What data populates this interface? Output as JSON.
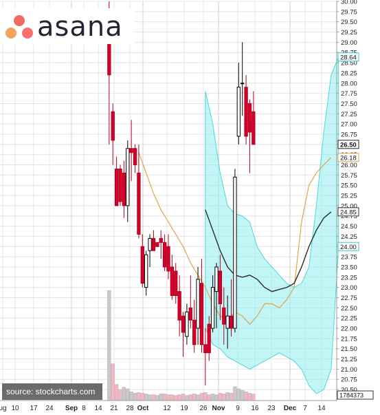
{
  "logo": {
    "text": "asana",
    "colors": [
      "#f06a6a",
      "#f0a35a",
      "#f96e6e"
    ]
  },
  "source": "source: stockcharts.com",
  "colors": {
    "up_body": "#ffffff",
    "down_body": "#d8002b",
    "wick": "#000000",
    "band_fill": "#8fefef",
    "band_edge": "#4fd6d6",
    "sma_short": "#e0a44a",
    "sma_long": "#2b2b2b",
    "volume": "#c9c9c9",
    "grid": "#e4e4e4"
  },
  "chart_data": {
    "type": "candlestick",
    "ylim": [
      20.4,
      30.0
    ],
    "y_ticks": [
      "30.00",
      "29.75",
      "29.50",
      "29.25",
      "29.00",
      "28.75",
      "28.50",
      "28.25",
      "28.00",
      "27.75",
      "27.50",
      "27.25",
      "27.00",
      "26.75",
      "26.50",
      "26.25",
      "26.00",
      "25.75",
      "25.50",
      "25.25",
      "25.00",
      "24.75",
      "24.50",
      "24.25",
      "24.00",
      "23.75",
      "23.50",
      "23.25",
      "23.00",
      "22.75",
      "22.50",
      "22.25",
      "22.00",
      "21.75",
      "21.50",
      "21.25",
      "21.00",
      "20.75",
      "20.50"
    ],
    "x_ticks": [
      "ug",
      "10",
      "17",
      "24",
      "Sep",
      "8",
      "14",
      "21",
      "28",
      "Oct",
      "12",
      "19",
      "26",
      "Nov",
      "9",
      "16",
      "23",
      "Dec",
      "7",
      "14"
    ],
    "bold_x_ticks": [
      "Sep",
      "Oct",
      "Nov",
      "Dec"
    ],
    "price_labels": [
      {
        "text": "28.64",
        "value": 28.64,
        "style": "cyan"
      },
      {
        "text": "26.50",
        "value": 26.5,
        "style": "bold"
      },
      {
        "text": "26.18",
        "value": 26.18,
        "style": "orange"
      },
      {
        "text": "24.85",
        "value": 24.85,
        "style": "plain"
      },
      {
        "text": "24.00",
        "value": 24.0,
        "style": "cyan"
      }
    ],
    "volume_label": "1784373",
    "candles": [
      {
        "day": 29,
        "o": 29.3,
        "h": 30.0,
        "l": 26.5,
        "c": 28.2
      },
      {
        "day": 30,
        "o": 27.3,
        "h": 27.5,
        "l": 26.0,
        "c": 26.6
      },
      {
        "day": 31,
        "o": 25.9,
        "h": 26.2,
        "l": 25.0,
        "c": 25.0
      },
      {
        "day": 32,
        "o": 25.9,
        "h": 26.0,
        "l": 25.0,
        "c": 25.1
      },
      {
        "day": 33,
        "o": 25.8,
        "h": 26.1,
        "l": 24.7,
        "c": 25.0
      },
      {
        "day": 34,
        "o": 25.0,
        "h": 26.6,
        "l": 24.6,
        "c": 26.4
      },
      {
        "day": 35,
        "o": 26.4,
        "h": 27.1,
        "l": 25.6,
        "c": 26.3
      },
      {
        "day": 36,
        "o": 26.4,
        "h": 26.5,
        "l": 25.8,
        "c": 26.0
      },
      {
        "day": 37,
        "o": 25.8,
        "h": 26.5,
        "l": 24.2,
        "c": 24.3
      },
      {
        "day": 38,
        "o": 24.0,
        "h": 24.3,
        "l": 23.0,
        "c": 23.1
      },
      {
        "day": 39,
        "o": 23.0,
        "h": 23.9,
        "l": 22.8,
        "c": 23.8
      },
      {
        "day": 40,
        "o": 23.9,
        "h": 24.3,
        "l": 23.5,
        "c": 24.2
      },
      {
        "day": 41,
        "o": 24.2,
        "h": 24.4,
        "l": 23.9,
        "c": 23.9
      },
      {
        "day": 42,
        "o": 24.1,
        "h": 24.1,
        "l": 24.0,
        "c": 24.0
      },
      {
        "day": 43,
        "o": 24.2,
        "h": 24.4,
        "l": 23.7,
        "c": 24.1
      },
      {
        "day": 44,
        "o": 24.1,
        "h": 24.3,
        "l": 23.4,
        "c": 23.5
      },
      {
        "day": 45,
        "o": 24.0,
        "h": 24.3,
        "l": 23.2,
        "c": 23.4
      },
      {
        "day": 46,
        "o": 23.5,
        "h": 23.8,
        "l": 22.7,
        "c": 22.8
      },
      {
        "day": 47,
        "o": 23.4,
        "h": 23.6,
        "l": 22.6,
        "c": 22.8
      },
      {
        "day": 48,
        "o": 22.9,
        "h": 23.3,
        "l": 21.8,
        "c": 22.2
      },
      {
        "day": 49,
        "o": 22.3,
        "h": 22.4,
        "l": 21.3,
        "c": 21.9
      },
      {
        "day": 50,
        "o": 21.8,
        "h": 22.6,
        "l": 21.6,
        "c": 22.4
      },
      {
        "day": 51,
        "o": 22.5,
        "h": 23.3,
        "l": 22.0,
        "c": 22.2
      },
      {
        "day": 52,
        "o": 22.2,
        "h": 22.7,
        "l": 21.4,
        "c": 21.6
      },
      {
        "day": 53,
        "o": 22.0,
        "h": 23.5,
        "l": 21.6,
        "c": 23.2
      },
      {
        "day": 54,
        "o": 23.1,
        "h": 23.7,
        "l": 21.4,
        "c": 21.6
      },
      {
        "day": 55,
        "o": 21.6,
        "h": 22.0,
        "l": 20.6,
        "c": 21.4
      },
      {
        "day": 56,
        "o": 22.1,
        "h": 22.3,
        "l": 21.2,
        "c": 21.4
      },
      {
        "day": 57,
        "o": 22.0,
        "h": 23.3,
        "l": 21.9,
        "c": 23.0
      },
      {
        "day": 58,
        "o": 22.9,
        "h": 23.6,
        "l": 22.0,
        "c": 23.5
      },
      {
        "day": 59,
        "o": 23.4,
        "h": 23.8,
        "l": 22.2,
        "c": 22.6
      },
      {
        "day": 60,
        "o": 22.5,
        "h": 23.0,
        "l": 21.6,
        "c": 22.1
      },
      {
        "day": 61,
        "o": 22.0,
        "h": 22.8,
        "l": 21.5,
        "c": 22.3
      },
      {
        "day": 62,
        "o": 22.3,
        "h": 23.2,
        "l": 21.8,
        "c": 22.0
      },
      {
        "day": 63,
        "o": 22.0,
        "h": 25.9,
        "l": 21.9,
        "c": 25.7
      },
      {
        "day": 64,
        "o": 26.7,
        "h": 28.5,
        "l": 26.5,
        "c": 27.9
      },
      {
        "day": 65,
        "o": 28.0,
        "h": 29.0,
        "l": 27.2,
        "c": 28.0
      },
      {
        "day": 66,
        "o": 27.9,
        "h": 28.2,
        "l": 26.5,
        "c": 26.7
      },
      {
        "day": 67,
        "o": 27.5,
        "h": 27.6,
        "l": 25.8,
        "c": 26.8
      },
      {
        "day": 68,
        "o": 27.3,
        "h": 27.8,
        "l": 26.5,
        "c": 26.5
      }
    ],
    "bollinger_upper": [
      [
        55,
        27.8
      ],
      [
        57,
        27.0
      ],
      [
        59,
        25.8
      ],
      [
        61,
        25.0
      ],
      [
        63,
        24.8
      ],
      [
        65,
        24.75
      ],
      [
        67,
        24.6
      ],
      [
        69,
        24.0
      ],
      [
        71,
        23.7
      ],
      [
        73,
        23.5
      ],
      [
        75,
        23.3
      ],
      [
        77,
        23.1
      ],
      [
        79,
        23.0
      ],
      [
        81,
        23.1
      ],
      [
        83,
        23.5
      ],
      [
        85,
        25.0
      ],
      [
        87,
        26.8
      ],
      [
        89,
        28.2
      ],
      [
        91,
        28.64
      ]
    ],
    "bollinger_lower": [
      [
        55,
        22.0
      ],
      [
        57,
        21.6
      ],
      [
        59,
        21.5
      ],
      [
        61,
        21.3
      ],
      [
        63,
        21.2
      ],
      [
        65,
        21.1
      ],
      [
        67,
        21.0
      ],
      [
        69,
        21.1
      ],
      [
        71,
        21.2
      ],
      [
        73,
        21.3
      ],
      [
        75,
        21.4
      ],
      [
        77,
        21.3
      ],
      [
        79,
        21.2
      ],
      [
        81,
        21.0
      ],
      [
        83,
        20.6
      ],
      [
        85,
        20.4
      ],
      [
        87,
        20.5
      ],
      [
        89,
        21.0
      ],
      [
        91,
        24.0
      ]
    ],
    "sma_long": [
      [
        55,
        24.9
      ],
      [
        57,
        24.4
      ],
      [
        59,
        23.9
      ],
      [
        61,
        23.5
      ],
      [
        63,
        23.3
      ],
      [
        65,
        23.25
      ],
      [
        67,
        23.3
      ],
      [
        69,
        23.2
      ],
      [
        71,
        23.0
      ],
      [
        73,
        22.9
      ],
      [
        75,
        22.95
      ],
      [
        77,
        23.0
      ],
      [
        79,
        23.1
      ],
      [
        81,
        23.5
      ],
      [
        83,
        24.0
      ],
      [
        85,
        24.4
      ],
      [
        87,
        24.7
      ],
      [
        89,
        24.85
      ]
    ],
    "sma_short": [
      [
        37,
        26.3
      ],
      [
        39,
        25.8
      ],
      [
        41,
        25.3
      ],
      [
        43,
        24.9
      ],
      [
        45,
        24.6
      ],
      [
        47,
        24.3
      ],
      [
        49,
        24.0
      ],
      [
        51,
        23.6
      ],
      [
        53,
        23.3
      ],
      [
        55,
        23.0
      ],
      [
        57,
        22.6
      ],
      [
        59,
        22.3
      ],
      [
        61,
        22.2
      ],
      [
        63,
        22.4
      ],
      [
        65,
        22.3
      ],
      [
        67,
        22.1
      ],
      [
        69,
        22.3
      ],
      [
        71,
        22.6
      ],
      [
        73,
        22.6
      ],
      [
        75,
        22.5
      ],
      [
        77,
        22.7
      ],
      [
        79,
        23.0
      ],
      [
        81,
        24.6
      ],
      [
        83,
        25.5
      ],
      [
        85,
        25.8
      ],
      [
        87,
        26.0
      ],
      [
        89,
        26.18
      ]
    ],
    "volume": [
      {
        "day": 29,
        "v": 15.0,
        "shade": "grey"
      },
      {
        "day": 30,
        "v": 5.0,
        "shade": "pink"
      },
      {
        "day": 31,
        "v": 2.2,
        "shade": "pink"
      },
      {
        "day": 32,
        "v": 1.5,
        "shade": "pink"
      },
      {
        "day": 33,
        "v": 1.8,
        "shade": "grey"
      },
      {
        "day": 34,
        "v": 1.6,
        "shade": "grey"
      },
      {
        "day": 35,
        "v": 1.2,
        "shade": "grey"
      },
      {
        "day": 36,
        "v": 1.0,
        "shade": "grey"
      },
      {
        "day": 37,
        "v": 1.1,
        "shade": "pink"
      },
      {
        "day": 38,
        "v": 1.0,
        "shade": "pink"
      },
      {
        "day": 39,
        "v": 0.9,
        "shade": "grey"
      },
      {
        "day": 40,
        "v": 0.8,
        "shade": "grey"
      },
      {
        "day": 41,
        "v": 0.8,
        "shade": "pink"
      },
      {
        "day": 42,
        "v": 0.7,
        "shade": "grey"
      },
      {
        "day": 43,
        "v": 0.9,
        "shade": "grey"
      },
      {
        "day": 44,
        "v": 0.9,
        "shade": "pink"
      },
      {
        "day": 45,
        "v": 0.8,
        "shade": "pink"
      },
      {
        "day": 46,
        "v": 0.8,
        "shade": "pink"
      },
      {
        "day": 47,
        "v": 0.7,
        "shade": "pink"
      },
      {
        "day": 48,
        "v": 0.8,
        "shade": "pink"
      },
      {
        "day": 49,
        "v": 0.9,
        "shade": "pink"
      },
      {
        "day": 50,
        "v": 0.7,
        "shade": "grey"
      },
      {
        "day": 51,
        "v": 0.8,
        "shade": "pink"
      },
      {
        "day": 52,
        "v": 0.9,
        "shade": "pink"
      },
      {
        "day": 53,
        "v": 0.8,
        "shade": "grey"
      },
      {
        "day": 54,
        "v": 1.0,
        "shade": "pink"
      },
      {
        "day": 55,
        "v": 1.1,
        "shade": "pink"
      },
      {
        "day": 56,
        "v": 0.8,
        "shade": "pink"
      },
      {
        "day": 57,
        "v": 0.9,
        "shade": "grey"
      },
      {
        "day": 58,
        "v": 0.8,
        "shade": "grey"
      },
      {
        "day": 59,
        "v": 1.0,
        "shade": "pink"
      },
      {
        "day": 60,
        "v": 0.9,
        "shade": "pink"
      },
      {
        "day": 61,
        "v": 1.1,
        "shade": "grey"
      },
      {
        "day": 62,
        "v": 1.0,
        "shade": "pink"
      },
      {
        "day": 63,
        "v": 1.9,
        "shade": "grey"
      },
      {
        "day": 64,
        "v": 1.6,
        "shade": "grey"
      },
      {
        "day": 65,
        "v": 1.4,
        "shade": "grey"
      },
      {
        "day": 66,
        "v": 1.2,
        "shade": "pink"
      },
      {
        "day": 67,
        "v": 1.0,
        "shade": "pink"
      },
      {
        "day": 68,
        "v": 0.9,
        "shade": "pink"
      }
    ]
  }
}
